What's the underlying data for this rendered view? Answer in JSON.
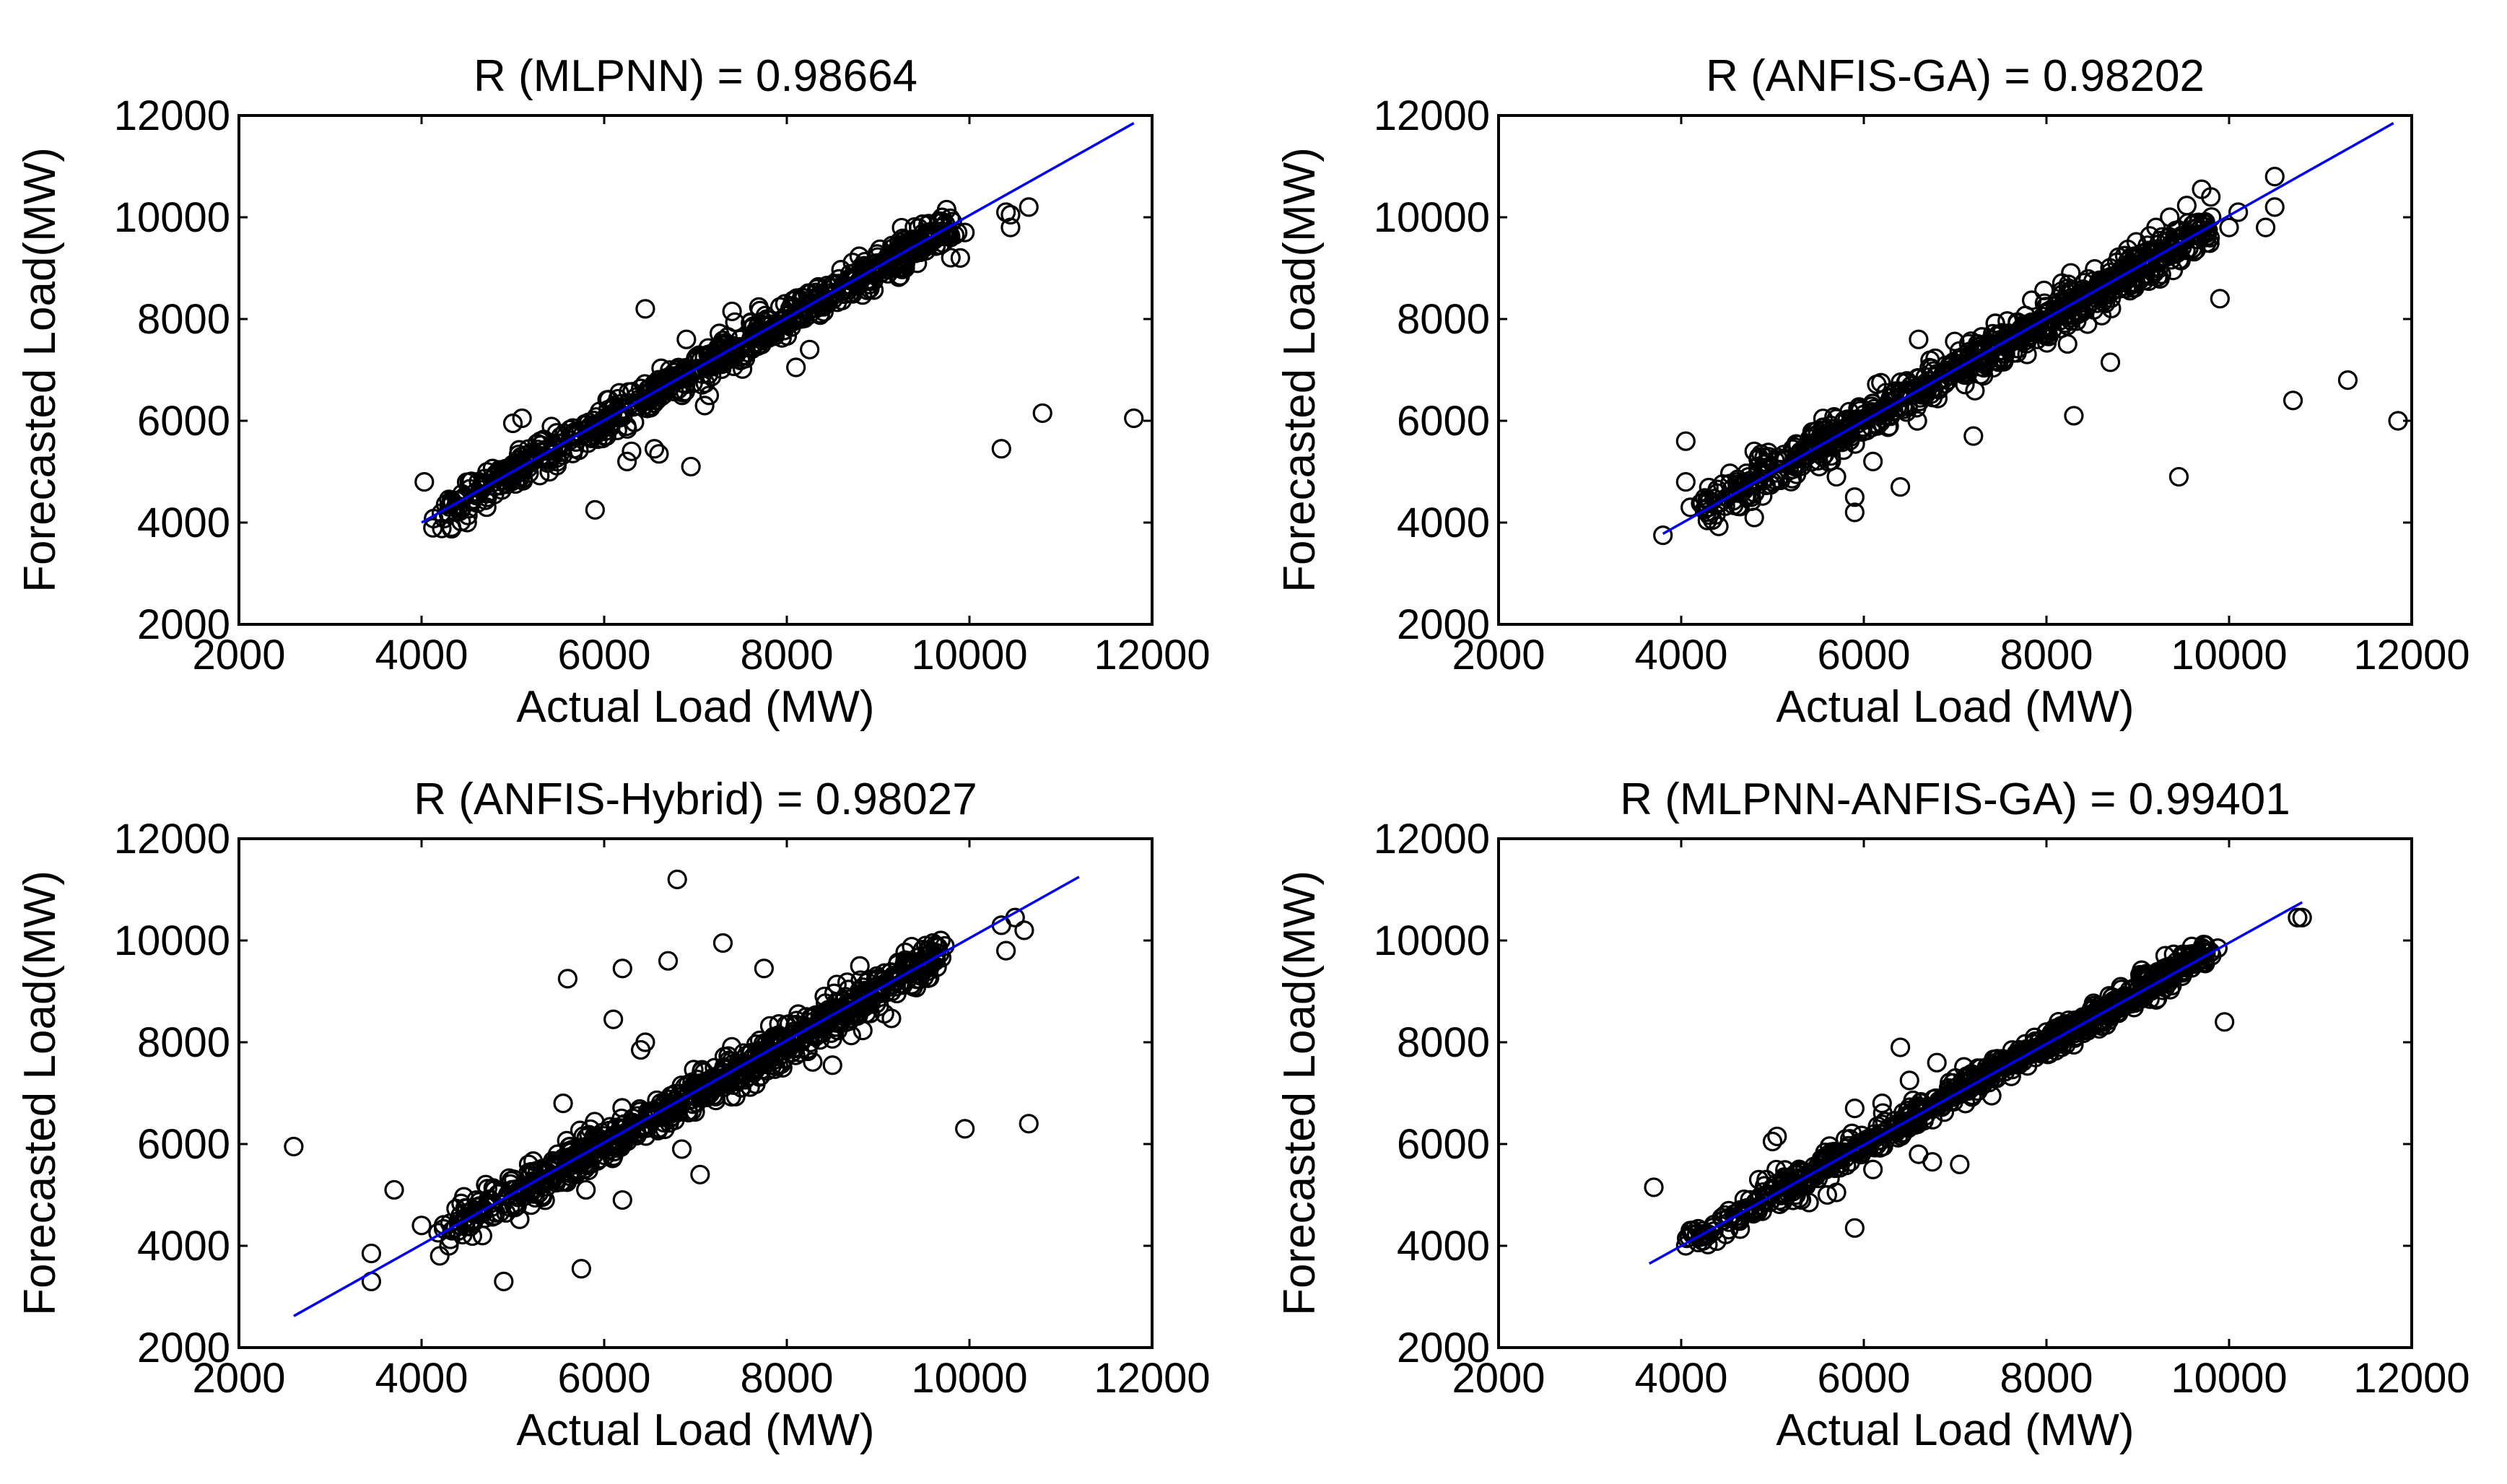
{
  "chart_data": [
    {
      "type": "scatter",
      "title": "R (MLPNN) = 0.98664",
      "xlabel": "Actual Load (MW)",
      "ylabel": "Forecasted Load(MW)",
      "xlim": [
        2000,
        12000
      ],
      "ylim": [
        2000,
        12000
      ],
      "xticks": [
        2000,
        4000,
        6000,
        8000,
        10000,
        12000
      ],
      "yticks": [
        2000,
        4000,
        6000,
        8000,
        10000,
        12000
      ],
      "xtick_labels": [
        "2000",
        "4000",
        "6000",
        "8000",
        "10000",
        "12000"
      ],
      "ytick_labels": [
        "2000",
        "4000",
        "6000",
        "8000",
        "10000",
        "12000"
      ],
      "fit_line": {
        "x": [
          4000,
          11800
        ],
        "y": [
          4000,
          11850
        ]
      },
      "cluster": {
        "x_range": [
          4100,
          9800
        ],
        "slope": 1.0,
        "intercept": 0,
        "spread": 170,
        "count": 700
      },
      "outliers": [
        [
          4030,
          4800
        ],
        [
          4500,
          4000
        ],
        [
          5000,
          5950
        ],
        [
          5100,
          6050
        ],
        [
          5300,
          5600
        ],
        [
          5900,
          4250
        ],
        [
          6000,
          5700
        ],
        [
          6250,
          5200
        ],
        [
          6300,
          5400
        ],
        [
          6450,
          8200
        ],
        [
          6550,
          5450
        ],
        [
          6600,
          5350
        ],
        [
          6900,
          7600
        ],
        [
          6950,
          5100
        ],
        [
          7100,
          6300
        ],
        [
          7150,
          6500
        ],
        [
          7300,
          7300
        ],
        [
          7400,
          8150
        ],
        [
          8100,
          7050
        ],
        [
          8250,
          7400
        ],
        [
          8950,
          8750
        ],
        [
          9100,
          9100
        ],
        [
          9750,
          10150
        ],
        [
          9900,
          9200
        ],
        [
          9950,
          9700
        ],
        [
          10350,
          5450
        ],
        [
          10400,
          10100
        ],
        [
          10450,
          9800
        ],
        [
          10450,
          10050
        ],
        [
          10650,
          10200
        ],
        [
          10800,
          6150
        ],
        [
          11800,
          6050
        ]
      ]
    },
    {
      "type": "scatter",
      "title": "R (ANFIS-GA) = 0.98202",
      "xlabel": "Actual Load (MW)",
      "ylabel": "Forecasted Load(MW)",
      "xlim": [
        2000,
        12000
      ],
      "ylim": [
        2000,
        12000
      ],
      "xticks": [
        2000,
        4000,
        6000,
        8000,
        10000,
        12000
      ],
      "yticks": [
        2000,
        4000,
        6000,
        8000,
        10000,
        12000
      ],
      "xtick_labels": [
        "2000",
        "4000",
        "6000",
        "8000",
        "10000",
        "12000"
      ],
      "ytick_labels": [
        "2000",
        "4000",
        "6000",
        "8000",
        "10000",
        "12000"
      ],
      "fit_line": {
        "x": [
          3800,
          11800
        ],
        "y": [
          3780,
          11850
        ]
      },
      "cluster": {
        "x_range": [
          4200,
          9800
        ],
        "slope": 1.0,
        "intercept": 0,
        "spread": 200,
        "count": 750
      },
      "outliers": [
        [
          3800,
          3750
        ],
        [
          4050,
          5600
        ],
        [
          4050,
          4800
        ],
        [
          4100,
          4300
        ],
        [
          4300,
          4300
        ],
        [
          4800,
          4100
        ],
        [
          4800,
          5400
        ],
        [
          5000,
          4800
        ],
        [
          5700,
          4900
        ],
        [
          5900,
          4200
        ],
        [
          5900,
          4500
        ],
        [
          6100,
          5200
        ],
        [
          6400,
          4700
        ],
        [
          6600,
          7600
        ],
        [
          7100,
          6900
        ],
        [
          7200,
          5700
        ],
        [
          7900,
          7600
        ],
        [
          8300,
          6100
        ],
        [
          8450,
          7900
        ],
        [
          8700,
          7150
        ],
        [
          9200,
          9800
        ],
        [
          9350,
          10000
        ],
        [
          9450,
          4900
        ],
        [
          9700,
          10550
        ],
        [
          9800,
          10400
        ],
        [
          9900,
          8400
        ],
        [
          10000,
          9800
        ],
        [
          10100,
          10100
        ],
        [
          10400,
          9800
        ],
        [
          10500,
          10800
        ],
        [
          10500,
          10200
        ],
        [
          10700,
          6400
        ],
        [
          11300,
          6800
        ],
        [
          11850,
          6000
        ]
      ]
    },
    {
      "type": "scatter",
      "title": "R (ANFIS-Hybrid) = 0.98027",
      "xlabel": "Actual Load (MW)",
      "ylabel": "Forecasted Load(MW)",
      "xlim": [
        2000,
        12000
      ],
      "ylim": [
        2000,
        12000
      ],
      "xticks": [
        2000,
        4000,
        6000,
        8000,
        10000,
        12000
      ],
      "yticks": [
        2000,
        4000,
        6000,
        8000,
        10000,
        12000
      ],
      "xtick_labels": [
        "2000",
        "4000",
        "6000",
        "8000",
        "10000",
        "12000"
      ],
      "ytick_labels": [
        "2000",
        "4000",
        "6000",
        "8000",
        "10000",
        "12000"
      ],
      "fit_line": {
        "x": [
          2600,
          11200
        ],
        "y": [
          2620,
          11250
        ]
      },
      "cluster": {
        "x_range": [
          4200,
          9700
        ],
        "slope": 1.0,
        "intercept": 0,
        "spread": 200,
        "count": 750
      },
      "outliers": [
        [
          2600,
          5950
        ],
        [
          3450,
          3850
        ],
        [
          3450,
          3300
        ],
        [
          3700,
          5100
        ],
        [
          4000,
          4400
        ],
        [
          4300,
          4000
        ],
        [
          4900,
          3300
        ],
        [
          5200,
          4800
        ],
        [
          5550,
          6800
        ],
        [
          5600,
          9250
        ],
        [
          5750,
          3550
        ],
        [
          5800,
          5100
        ],
        [
          6100,
          8450
        ],
        [
          6200,
          4900
        ],
        [
          6200,
          9450
        ],
        [
          6400,
          7850
        ],
        [
          6450,
          8000
        ],
        [
          6700,
          9600
        ],
        [
          6800,
          11200
        ],
        [
          6850,
          5900
        ],
        [
          7050,
          5400
        ],
        [
          7300,
          9950
        ],
        [
          7750,
          9450
        ],
        [
          8200,
          8200
        ],
        [
          8500,
          7550
        ],
        [
          8800,
          9500
        ],
        [
          9600,
          9950
        ],
        [
          9950,
          6300
        ],
        [
          10350,
          10300
        ],
        [
          10400,
          9800
        ],
        [
          10500,
          10450
        ],
        [
          10600,
          10200
        ],
        [
          10650,
          6400
        ]
      ]
    },
    {
      "type": "scatter",
      "title": "R (MLPNN-ANFIS-GA) = 0.99401",
      "xlabel": "Actual Load (MW)",
      "ylabel": "Forecasted Load(MW)",
      "xlim": [
        2000,
        12000
      ],
      "ylim": [
        2000,
        12000
      ],
      "xticks": [
        2000,
        4000,
        6000,
        8000,
        10000,
        12000
      ],
      "yticks": [
        2000,
        4000,
        6000,
        8000,
        10000,
        12000
      ],
      "xtick_labels": [
        "2000",
        "4000",
        "6000",
        "8000",
        "10000",
        "12000"
      ],
      "ytick_labels": [
        "2000",
        "4000",
        "6000",
        "8000",
        "10000",
        "12000"
      ],
      "fit_line": {
        "x": [
          3650,
          10800
        ],
        "y": [
          3650,
          10750
        ]
      },
      "cluster": {
        "x_range": [
          4100,
          9800
        ],
        "slope": 1.0,
        "intercept": 0,
        "spread": 120,
        "count": 750
      },
      "outliers": [
        [
          3700,
          5150
        ],
        [
          4050,
          4000
        ],
        [
          4100,
          4300
        ],
        [
          4850,
          5300
        ],
        [
          5000,
          6050
        ],
        [
          5050,
          6150
        ],
        [
          5400,
          4850
        ],
        [
          5600,
          5000
        ],
        [
          5700,
          5050
        ],
        [
          5900,
          6700
        ],
        [
          5900,
          4350
        ],
        [
          6100,
          5500
        ],
        [
          6200,
          6800
        ],
        [
          6400,
          7900
        ],
        [
          6500,
          7250
        ],
        [
          6600,
          5800
        ],
        [
          6750,
          5650
        ],
        [
          6800,
          7600
        ],
        [
          7050,
          5600
        ],
        [
          7400,
          6950
        ],
        [
          7900,
          7900
        ],
        [
          8000,
          8200
        ],
        [
          8300,
          7950
        ],
        [
          8700,
          8650
        ],
        [
          9300,
          9700
        ],
        [
          9950,
          8400
        ],
        [
          10750,
          10450
        ],
        [
          10800,
          10450
        ]
      ]
    }
  ]
}
